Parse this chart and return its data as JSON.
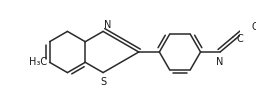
{
  "bg_color": "#ffffff",
  "line_color": "#2a2a2a",
  "line_width": 1.1,
  "text_color": "#1a1a1a",
  "fig_width": 2.56,
  "fig_height": 1.04,
  "dpi": 100,
  "font_size": 7.0,
  "h3c_label": "H₃C",
  "n_label": "N",
  "c_label": "C",
  "o_label": "O",
  "s_label": "S"
}
